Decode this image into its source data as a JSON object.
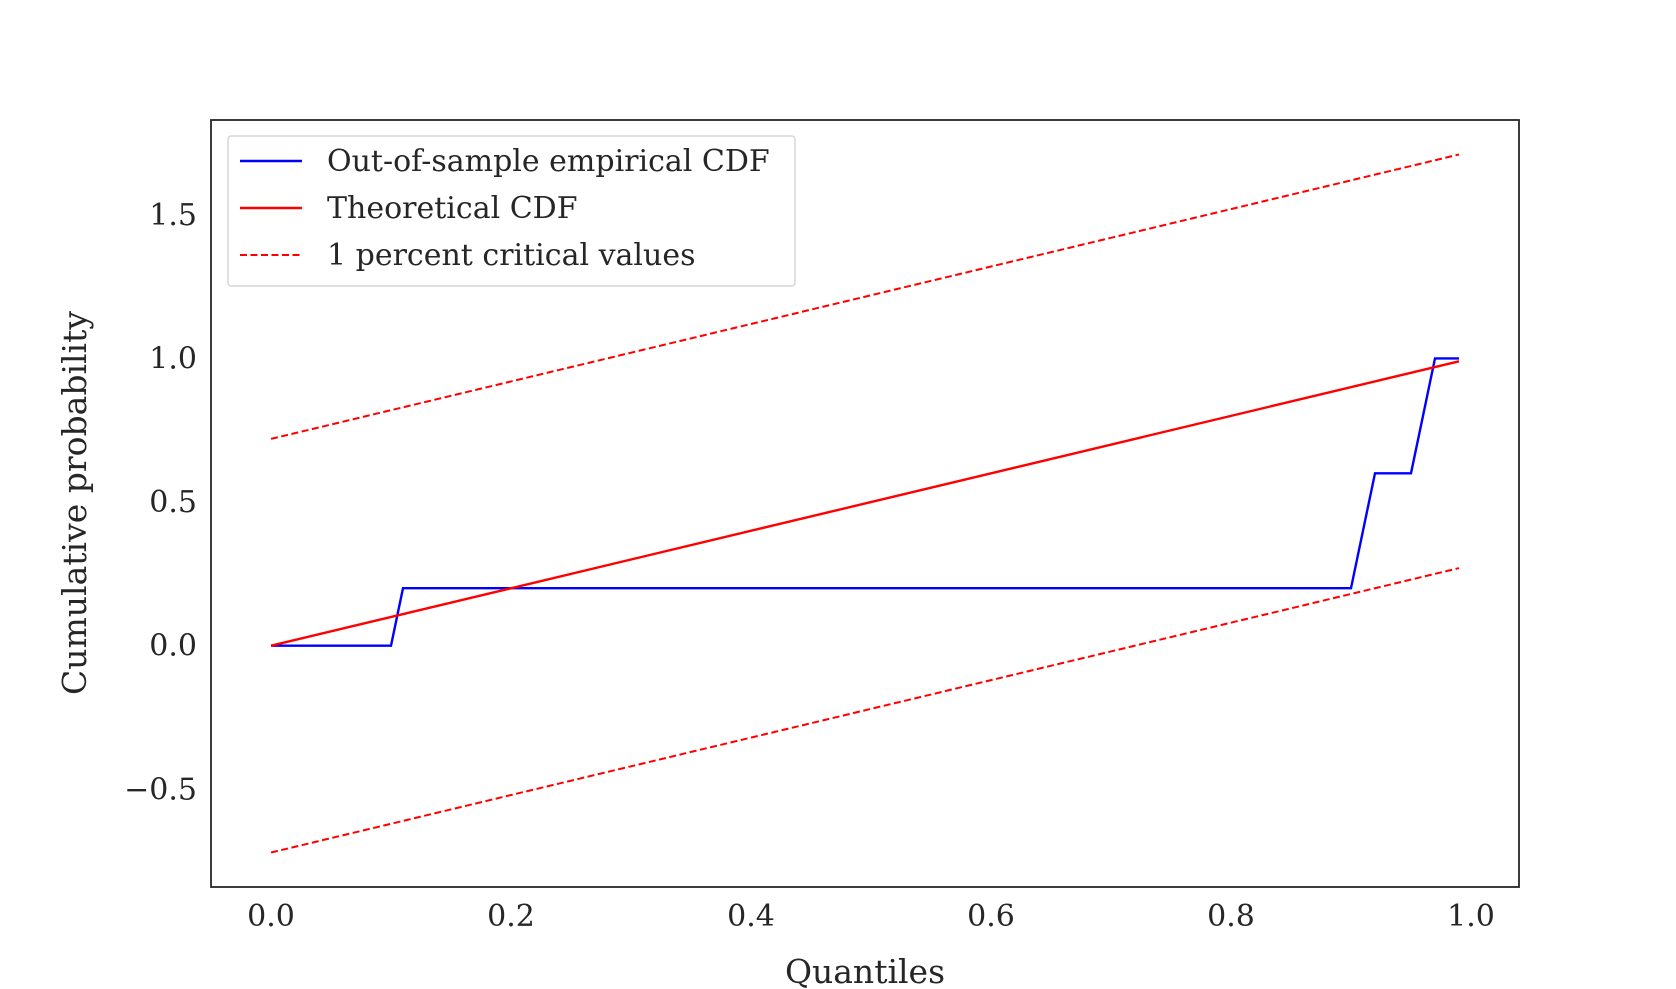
{
  "chart_data": {
    "type": "line",
    "xlabel": "Quantiles",
    "ylabel": "Cumulative probability",
    "xlim": [
      -0.05,
      1.04
    ],
    "ylim": [
      -0.84,
      1.83
    ],
    "xticks": [
      0.0,
      0.2,
      0.4,
      0.6,
      0.8,
      1.0
    ],
    "xtick_labels": [
      "0.0",
      "0.2",
      "0.4",
      "0.6",
      "0.8",
      "1.0"
    ],
    "yticks": [
      -0.5,
      0.0,
      0.5,
      1.0,
      1.5
    ],
    "ytick_labels": [
      "−0.5",
      "0.0",
      "0.5",
      "1.0",
      "1.5"
    ],
    "grid": false,
    "legend_position": "top-left",
    "series": [
      {
        "name": "Out-of-sample empirical CDF",
        "color": "#0000ff",
        "style": "solid",
        "x": [
          0.0,
          0.1,
          0.11,
          0.9,
          0.92,
          0.95,
          0.97,
          0.99
        ],
        "y": [
          0.0,
          0.0,
          0.2,
          0.2,
          0.6,
          0.6,
          1.0,
          1.0
        ]
      },
      {
        "name": "Theoretical CDF",
        "color": "#ff0000",
        "style": "solid",
        "x": [
          0.0,
          0.99
        ],
        "y": [
          0.0,
          0.99
        ]
      },
      {
        "name": "1 percent critical values",
        "color": "#ff0000",
        "style": "dashed",
        "x": [
          0.0,
          0.99
        ],
        "y": [
          0.72,
          1.71
        ]
      },
      {
        "name": "",
        "color": "#ff0000",
        "style": "dashed",
        "x": [
          0.0,
          0.99
        ],
        "y": [
          -0.72,
          0.27
        ]
      }
    ],
    "legend": [
      {
        "label": "Out-of-sample empirical CDF",
        "color": "#0000ff",
        "style": "solid"
      },
      {
        "label": "Theoretical CDF",
        "color": "#ff0000",
        "style": "solid"
      },
      {
        "label": "1 percent critical values",
        "color": "#ff0000",
        "style": "dashed"
      }
    ]
  }
}
